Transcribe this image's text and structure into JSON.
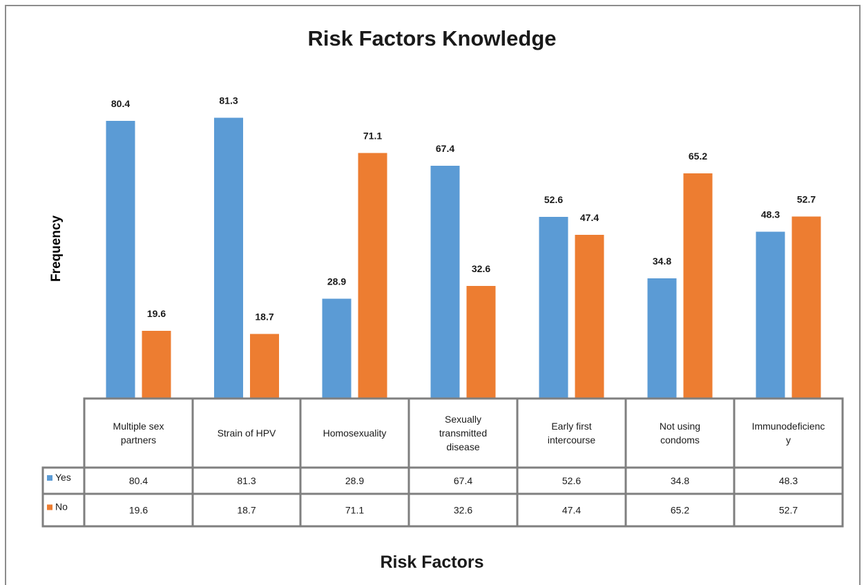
{
  "chart_data": {
    "type": "bar",
    "title": "Risk Factors Knowledge",
    "xlabel": "Risk Factors",
    "ylabel": "Frequency",
    "ylim": [
      0,
      100
    ],
    "grid": false,
    "legend": "data-table",
    "categories": [
      [
        "Multiple sex",
        "partners"
      ],
      [
        "Strain of HPV"
      ],
      [
        "Homosexuality"
      ],
      [
        "Sexually",
        "transmitted",
        "disease"
      ],
      [
        "Early first",
        "intercourse"
      ],
      [
        "Not using",
        "condoms"
      ],
      [
        "Immunodeficienc",
        "y"
      ]
    ],
    "series": [
      {
        "name": "Yes",
        "color": "#5b9bd5",
        "values": [
          80.4,
          81.3,
          28.9,
          67.4,
          52.6,
          34.8,
          48.3
        ]
      },
      {
        "name": "No",
        "color": "#ed7d31",
        "values": [
          19.6,
          18.7,
          71.1,
          32.6,
          47.4,
          65.2,
          52.7
        ]
      }
    ]
  }
}
